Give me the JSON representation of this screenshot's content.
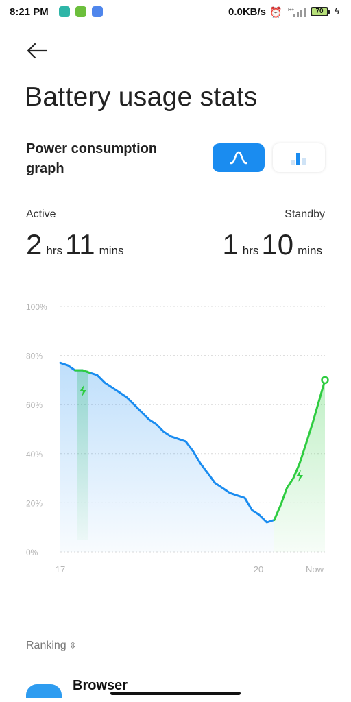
{
  "status_bar": {
    "time": "8:21 PM",
    "network_speed": "0.0KB/s",
    "battery_level": "70",
    "notification_icons": [
      "status-app-icon",
      "download-icon",
      "translate-icon"
    ]
  },
  "header": {
    "back_icon": "arrow-left-icon",
    "title": "Battery usage stats"
  },
  "graph_section": {
    "label": "Power consumption graph",
    "view_modes": [
      {
        "name": "curve",
        "icon": "curve-graph-icon",
        "selected": true
      },
      {
        "name": "bars",
        "icon": "bar-graph-icon",
        "selected": false
      }
    ]
  },
  "stats": {
    "active": {
      "label": "Active",
      "hours": "2",
      "hours_unit": "hrs",
      "minutes": "11",
      "minutes_unit": "mins"
    },
    "standby": {
      "label": "Standby",
      "hours": "1",
      "hours_unit": "hrs",
      "minutes": "10",
      "minutes_unit": "mins"
    }
  },
  "chart_data": {
    "type": "area",
    "title": "",
    "xlabel": "",
    "ylabel": "",
    "y_ticks": [
      "100%",
      "80%",
      "60%",
      "40%",
      "20%",
      "0%"
    ],
    "x_ticks": [
      "17",
      "20",
      "Now"
    ],
    "ylim": [
      0,
      100
    ],
    "grid": true,
    "series": [
      {
        "color": "#1a8cf0",
        "values": [
          77,
          76,
          74,
          74,
          73,
          72,
          69,
          67,
          65,
          63,
          60,
          57,
          54,
          52,
          49,
          47,
          46,
          45,
          41,
          36,
          32,
          28,
          26,
          24,
          23,
          22,
          17,
          15,
          12,
          13
        ]
      },
      {
        "color": "#2ecc40",
        "values": [
          13,
          19,
          26,
          30,
          36,
          44,
          52,
          61,
          70
        ]
      }
    ],
    "charging_periods": [
      {
        "color": "#2ecc40",
        "icon": "charging-bolt-icon"
      },
      {
        "color": "#2ecc40",
        "icon": "charging-bolt-icon"
      }
    ]
  },
  "ranking": {
    "label": "Ranking",
    "sort_icon": "sort-chevron-icon",
    "first_app": {
      "name": "Browser",
      "icon": "browser-app-icon",
      "icon_color": "#2e9cf0"
    }
  }
}
